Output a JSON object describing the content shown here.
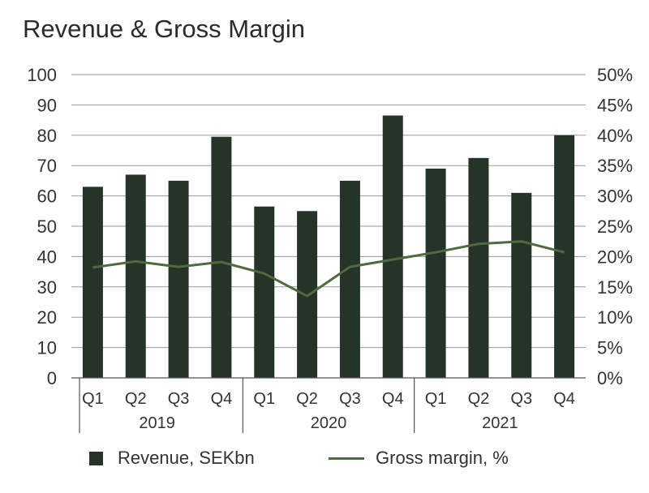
{
  "chart_data": {
    "type": "bar",
    "title": "Revenue & Gross Margin",
    "categories": [
      "Q1",
      "Q2",
      "Q3",
      "Q4",
      "Q1",
      "Q2",
      "Q3",
      "Q4",
      "Q1",
      "Q2",
      "Q3",
      "Q4"
    ],
    "groups": [
      {
        "label": "2019",
        "count": 4
      },
      {
        "label": "2020",
        "count": 4
      },
      {
        "label": "2021",
        "count": 4
      }
    ],
    "series": [
      {
        "name": "Revenue, SEKbn",
        "type": "bar",
        "axis": "left",
        "color": "#263328",
        "values": [
          63,
          67,
          65,
          79.5,
          56.5,
          55,
          65,
          86.5,
          69,
          72.5,
          61,
          80
        ]
      },
      {
        "name": "Gross margin, %",
        "type": "line",
        "axis": "right",
        "color": "#4e6a3e",
        "values": [
          18.2,
          19.2,
          18.3,
          19.1,
          17.2,
          13.5,
          18.3,
          19.5,
          20.7,
          22.1,
          22.5,
          20.7
        ]
      }
    ],
    "y_left": {
      "ylim": [
        0,
        100
      ],
      "ticks": [
        "0",
        "10",
        "20",
        "30",
        "40",
        "50",
        "60",
        "70",
        "80",
        "90",
        "100"
      ]
    },
    "y_right": {
      "ylim": [
        0,
        50
      ],
      "ticks": [
        "0%",
        "5%",
        "10%",
        "15%",
        "20%",
        "25%",
        "30%",
        "35%",
        "40%",
        "45%",
        "50%"
      ]
    },
    "grid": true,
    "legend_position": "bottom"
  }
}
